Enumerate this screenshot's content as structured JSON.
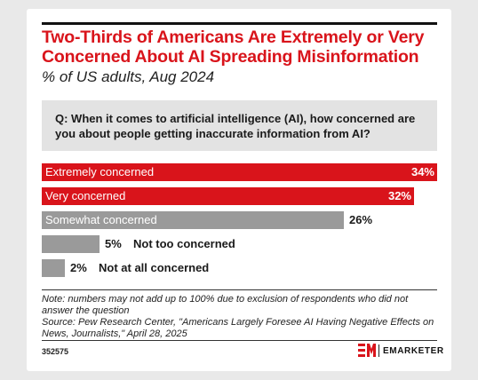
{
  "title": "Two-Thirds of Americans Are Extremely or Very Concerned About AI Spreading Misinformation",
  "subtitle": "% of US adults, Aug 2024",
  "question": "Q: When it comes to artificial intelligence (AI), how concerned are you about people getting inaccurate information from AI?",
  "note": "Note: numbers may not add up to 100% due to exclusion of respondents who did not answer the question",
  "source": "Source: Pew Research Center, \"Americans Largely Foresee AI Having Negative Effects on News, Journalists,\" April 28, 2025",
  "chart_id": "352575",
  "brand": "EMARKETER",
  "colors": {
    "accent_red": "#d9141b",
    "gray_bar": "#9a9a9a",
    "question_bg": "#e3e3e3"
  },
  "chart_data": {
    "type": "bar",
    "orientation": "horizontal",
    "title": "Two-Thirds of Americans Are Extremely or Very Concerned About AI Spreading Misinformation",
    "subtitle": "% of US adults, Aug 2024",
    "categories": [
      "Extremely concerned",
      "Very concerned",
      "Somewhat concerned",
      "Not too concerned",
      "Not at all concerned"
    ],
    "values": [
      34,
      32,
      26,
      5,
      2
    ],
    "value_labels": [
      "34%",
      "32%",
      "26%",
      "5%",
      "2%"
    ],
    "bar_colors": [
      "#d9141b",
      "#d9141b",
      "#9a9a9a",
      "#9a9a9a",
      "#9a9a9a"
    ],
    "xlim": [
      0,
      34
    ],
    "grid": false,
    "legend": "none"
  }
}
